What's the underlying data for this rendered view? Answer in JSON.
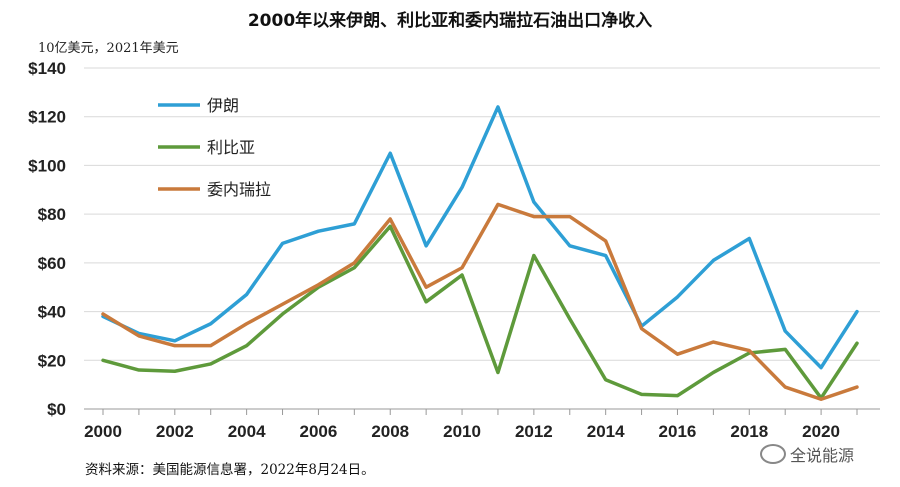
{
  "title": "2000年以来伊朗、利比亚和委内瑞拉石油出口净收入",
  "unit_label": "10亿美元，2021年美元",
  "source": "资料来源：美国能源信息署，2022年8月24日。",
  "watermark": "全说能源",
  "chart_data": {
    "type": "line",
    "x": [
      2000,
      2001,
      2002,
      2003,
      2004,
      2005,
      2006,
      2007,
      2008,
      2009,
      2010,
      2011,
      2012,
      2013,
      2014,
      2015,
      2016,
      2017,
      2018,
      2019,
      2020,
      2021
    ],
    "x_ticks": [
      "2000",
      "2002",
      "2004",
      "2006",
      "2008",
      "2010",
      "2012",
      "2014",
      "2016",
      "2018",
      "2020"
    ],
    "y_ticks": [
      "$0",
      "$20",
      "$40",
      "$60",
      "$80",
      "$100",
      "$120",
      "$140"
    ],
    "ylim": [
      0,
      140
    ],
    "series": [
      {
        "name": "伊朗",
        "color": "#2E9FD5",
        "values": [
          38,
          31,
          28,
          35,
          47,
          68,
          73,
          76,
          105,
          67,
          91,
          124,
          85,
          67,
          63,
          34,
          46,
          61,
          70,
          32,
          17,
          40
        ]
      },
      {
        "name": "利比亚",
        "color": "#5E9A3B",
        "values": [
          20,
          16,
          15.5,
          18.5,
          26,
          39,
          50,
          58,
          75,
          44,
          55,
          15,
          63,
          37,
          12,
          6,
          5.5,
          15,
          23,
          24.5,
          4.5,
          27
        ]
      },
      {
        "name": "委内瑞拉",
        "color": "#C97A3C",
        "values": [
          39,
          30,
          26,
          26,
          35,
          43,
          51,
          60,
          78,
          50,
          58,
          84,
          79,
          79,
          69,
          33,
          22.5,
          27.5,
          24,
          9,
          4,
          9
        ]
      }
    ],
    "legend": "top-left",
    "grid": "horizontal"
  }
}
